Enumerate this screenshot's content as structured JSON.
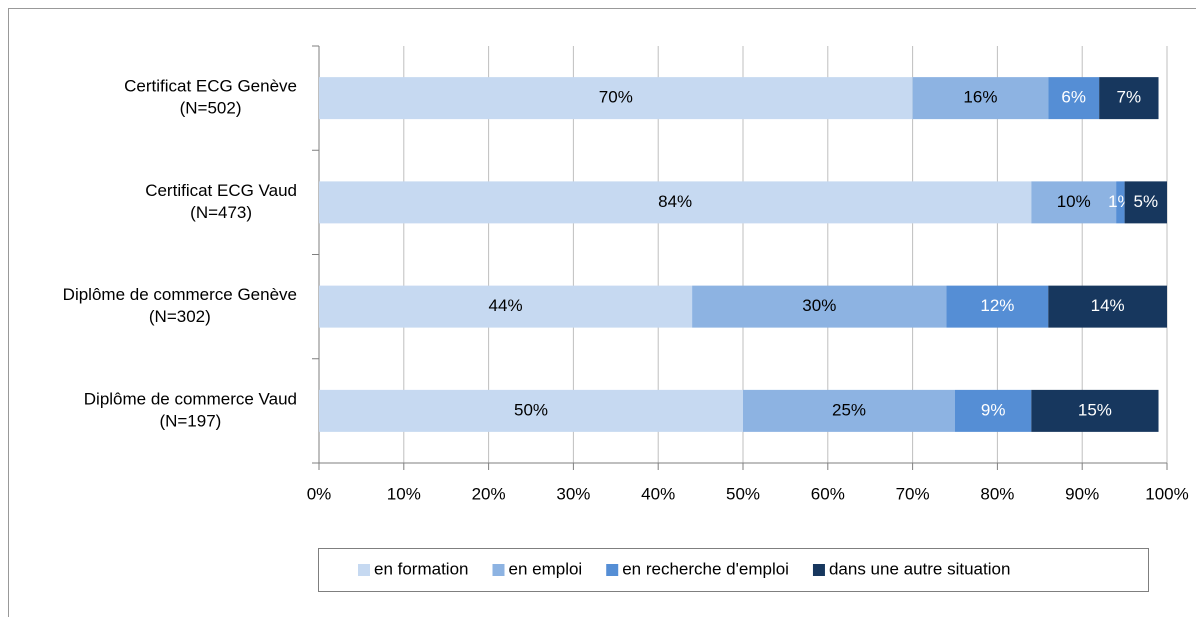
{
  "chart_data": {
    "type": "stacked_barh",
    "categories": [
      [
        "Certificat ECG Genève",
        "(N=502)"
      ],
      [
        "Certificat ECG Vaud",
        "(N=473)"
      ],
      [
        "Diplôme de commerce Genève",
        "(N=302)"
      ],
      [
        "Diplôme de commerce Vaud",
        "(N=197)"
      ]
    ],
    "series": [
      {
        "name": "en formation",
        "color": "#c6d9f1",
        "values": [
          70,
          84,
          44,
          50
        ],
        "value_labels": [
          "70%",
          "84%",
          "44%",
          "50%"
        ]
      },
      {
        "name": "en emploi",
        "color": "#8db3e2",
        "values": [
          16,
          10,
          30,
          25
        ],
        "value_labels": [
          "16%",
          "10%",
          "30%",
          "25%"
        ]
      },
      {
        "name": "en recherche d'emploi",
        "color": "#558ed5",
        "values": [
          6,
          1,
          12,
          9
        ],
        "value_labels": [
          "6%",
          "1%",
          "12%",
          "9%"
        ]
      },
      {
        "name": "dans une autre situation",
        "color": "#17375e",
        "values": [
          7,
          5,
          14,
          15
        ],
        "value_labels": [
          "7%",
          "5%",
          "14%",
          "15%"
        ]
      }
    ],
    "xlim": [
      0,
      100
    ],
    "xticks": [
      {
        "value": 0,
        "label": "0%"
      },
      {
        "value": 10,
        "label": "10%"
      },
      {
        "value": 20,
        "label": "20%"
      },
      {
        "value": 30,
        "label": "30%"
      },
      {
        "value": 40,
        "label": "40%"
      },
      {
        "value": 50,
        "label": "50%"
      },
      {
        "value": 60,
        "label": "60%"
      },
      {
        "value": 70,
        "label": "70%"
      },
      {
        "value": 80,
        "label": "80%"
      },
      {
        "value": 90,
        "label": "90%"
      },
      {
        "value": 100,
        "label": "100%"
      }
    ],
    "grid": true,
    "legend": "bottom"
  }
}
